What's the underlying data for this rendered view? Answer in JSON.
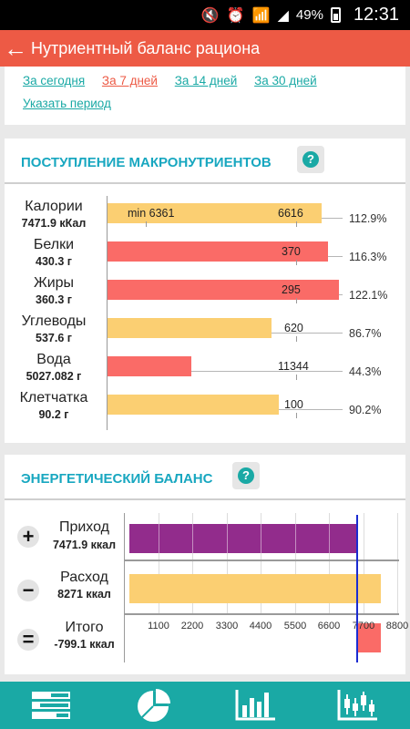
{
  "status_bar": {
    "battery": "49%",
    "time": "12:31"
  },
  "app_bar": {
    "title": "Нутриентный баланс рациона"
  },
  "period": {
    "links": [
      "За сегодня",
      "За 7 дней",
      "За 14 дней",
      "За 30 дней"
    ],
    "active": "За 7 дней",
    "custom": "Указать период"
  },
  "macro": {
    "title": "ПОСТУПЛЕНИЕ МАКРОНУТРИЕНТОВ",
    "help": "?",
    "min_label": "min 6361",
    "rows": [
      {
        "name": "Калории",
        "value": "7471.9 кКал",
        "norm": "6616",
        "percent": "112.9%",
        "fraction": 1.129,
        "color": "orange"
      },
      {
        "name": "Белки",
        "value": "430.3 г",
        "norm": "370",
        "percent": "116.3%",
        "fraction": 1.163,
        "color": "red"
      },
      {
        "name": "Жиры",
        "value": "360.3 г",
        "norm": "295",
        "percent": "122.1%",
        "fraction": 1.221,
        "color": "red"
      },
      {
        "name": "Углеводы",
        "value": "537.6 г",
        "norm": "620",
        "percent": "86.7%",
        "fraction": 0.867,
        "color": "orange"
      },
      {
        "name": "Вода",
        "value": "5027.082 г",
        "norm": "11344",
        "percent": "44.3%",
        "fraction": 0.443,
        "color": "red"
      },
      {
        "name": "Клетчатка",
        "value": "90.2 г",
        "norm": "100",
        "percent": "90.2%",
        "fraction": 0.902,
        "color": "orange"
      }
    ]
  },
  "energy": {
    "title": "ЭНЕРГЕТИЧЕСКИЙ БАЛАНС",
    "help": "?",
    "rows": [
      {
        "sign": "+",
        "name": "Приход",
        "value": "7471.9 ккал",
        "amount": 7471.9,
        "color": "purple"
      },
      {
        "sign": "−",
        "name": "Расход",
        "value": "8271 ккал",
        "amount": 8271,
        "color": "orange"
      },
      {
        "sign": "=",
        "name": "Итого",
        "value": "-799.1 ккал",
        "amount": -799.1,
        "color": "red"
      }
    ],
    "ticks": [
      "1100",
      "2200",
      "3300",
      "4400",
      "5500",
      "6600",
      "7700",
      "8800"
    ],
    "purple_segments": [
      1100,
      2200,
      3300,
      4400,
      5500,
      6600
    ],
    "max": 8800,
    "intake": 7471.9,
    "colors": {
      "purple": "#922c8c",
      "orange": "#fbcf72",
      "red": "#fa6b67",
      "line": "#1b2bd1"
    }
  },
  "bottom_nav": {
    "items": [
      "list-bars-icon",
      "pie-chart-icon",
      "bar-chart-icon",
      "candlestick-chart-icon"
    ]
  },
  "colors": {
    "accent": "#ed5a45",
    "teal": "#1aa9a5",
    "section_title": "#18a7c0"
  }
}
